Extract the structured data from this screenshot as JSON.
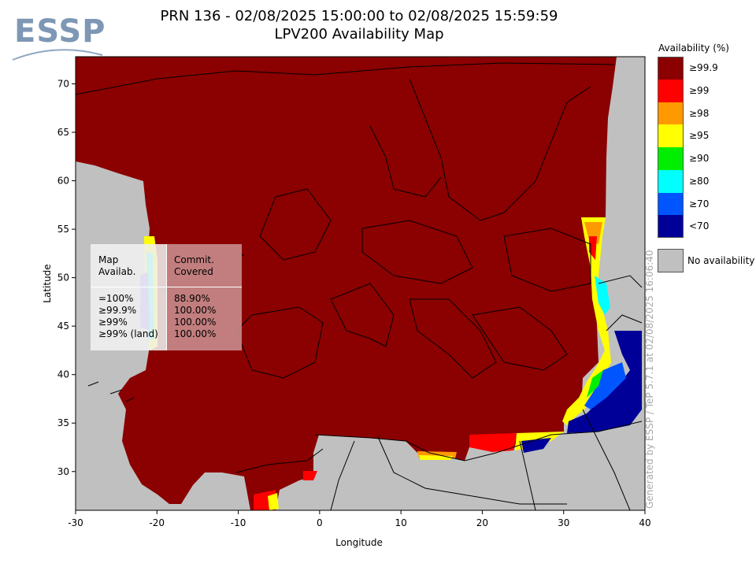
{
  "header": {
    "title_line1": "PRN 136 - 02/08/2025 15:00:00 to 02/08/2025 15:59:59",
    "title_line2": "LPV200 Availability Map"
  },
  "logo": {
    "text": "ESSP"
  },
  "axes": {
    "xlabel": "Longitude",
    "ylabel": "Latitude",
    "x_ticks": [
      "-30",
      "-20",
      "-10",
      "0",
      "10",
      "20",
      "30",
      "40"
    ],
    "y_ticks": [
      "30",
      "35",
      "40",
      "45",
      "50",
      "55",
      "60",
      "65",
      "70"
    ]
  },
  "legend": {
    "title": "Availability (%)",
    "items": [
      {
        "label": "≥99.9",
        "color": "#8b0000"
      },
      {
        "label": "≥99",
        "color": "#ff0000"
      },
      {
        "label": "≥98",
        "color": "#ff9900"
      },
      {
        "label": "≥95",
        "color": "#ffff00"
      },
      {
        "label": "≥90",
        "color": "#00ee00"
      },
      {
        "label": "≥80",
        "color": "#00ffff"
      },
      {
        "label": "≥70",
        "color": "#0055ff"
      },
      {
        "label": "<70",
        "color": "#000099"
      }
    ],
    "no_availability": "No availability",
    "no_availability_color": "#c0c0c0"
  },
  "stats_box": {
    "col1_header": [
      "Map",
      "Availab."
    ],
    "col2_header": [
      "Commit.",
      "Covered"
    ],
    "rows": [
      {
        "label": "=100%",
        "value": "88.90%"
      },
      {
        "label": "≥99.9%",
        "value": "100.00%"
      },
      {
        "label": "≥99%",
        "value": "100.00%"
      },
      {
        "label": "≥99% (land)",
        "value": "100.00%"
      }
    ]
  },
  "watermark": "Generated by ESSP / TeP 5.7.1 at 02/08/2025 16:06:40"
}
